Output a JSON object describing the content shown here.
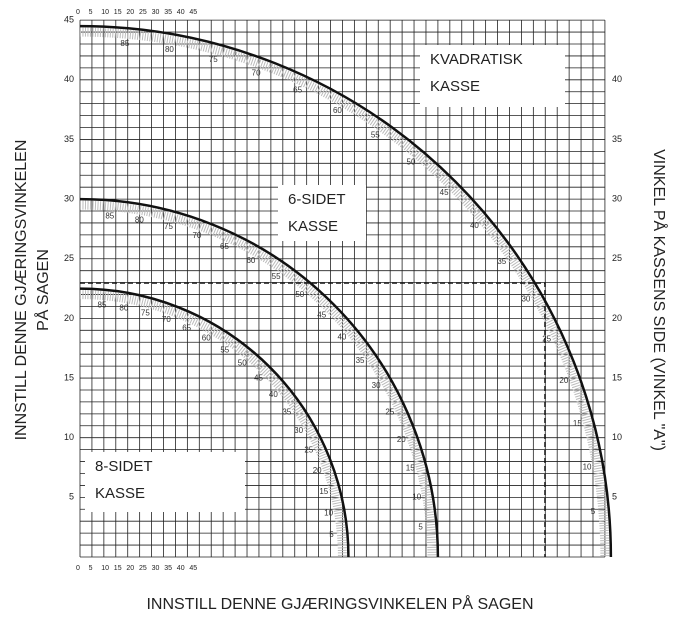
{
  "axes": {
    "left_label": [
      "INNSTILL DENNE GJÆRINGSVINKELEN",
      "PÅ SAGEN"
    ],
    "right_label": "VINKEL PÅ KASSENS SIDE (VINKEL \"A\")",
    "bottom_label": "INNSTILL DENNE GJÆRINGSVINKELEN PÅ SAGEN",
    "left_ticks": [
      5,
      10,
      15,
      20,
      25,
      30,
      35,
      40,
      45
    ],
    "right_ticks": [
      5,
      10,
      15,
      20,
      25,
      30,
      35,
      40
    ],
    "top_ticks": [
      0,
      5,
      10,
      15,
      20,
      25,
      30,
      35,
      40,
      45
    ],
    "bottom_ticks": [
      0,
      5,
      10,
      15,
      20,
      25,
      30,
      35,
      40,
      45
    ]
  },
  "boxes": [
    {
      "lines": [
        "KVADRATISK",
        "KASSE"
      ]
    },
    {
      "lines": [
        "6-SIDET",
        "KASSE"
      ]
    },
    {
      "lines": [
        "8-SIDET",
        "KASSE"
      ]
    }
  ],
  "arcs": [
    {
      "radius": 44.5,
      "labels": [
        85,
        80,
        75,
        70,
        65,
        60,
        55,
        50,
        45,
        40,
        35,
        30,
        25,
        20,
        15,
        10,
        5
      ]
    },
    {
      "radius": 30,
      "labels": [
        85,
        80,
        75,
        70,
        65,
        60,
        55,
        50,
        45,
        40,
        35,
        30,
        25,
        20,
        15,
        10,
        5
      ]
    },
    {
      "radius": 22.5,
      "labels": [
        85,
        80,
        75,
        70,
        65,
        60,
        55,
        50,
        45,
        40,
        35,
        30,
        25,
        20,
        15,
        10,
        5
      ]
    }
  ]
}
